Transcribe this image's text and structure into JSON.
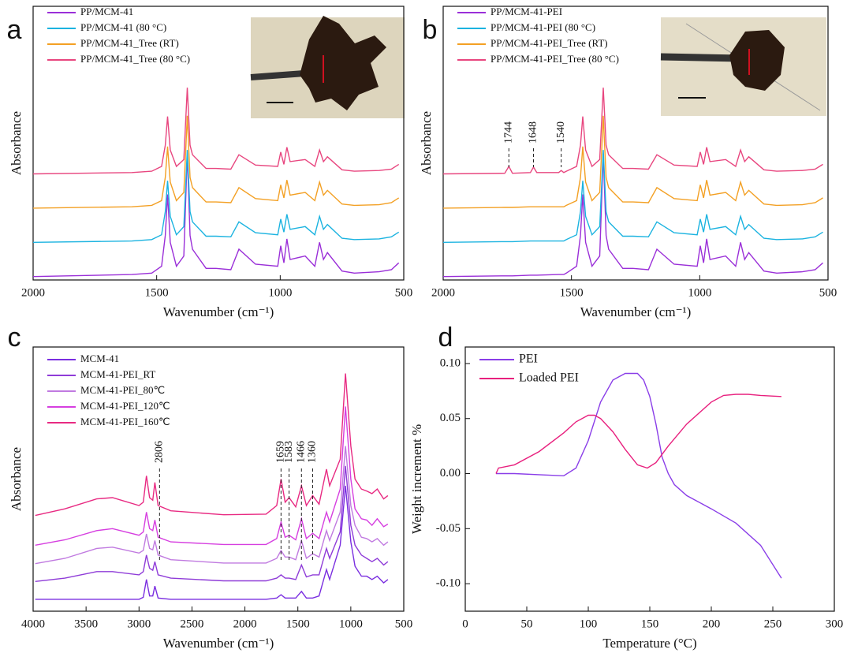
{
  "chart_data": [
    {
      "type": "line",
      "label": "a",
      "xlabel": "Wavenumber (cm⁻¹)",
      "ylabel": "Absorbance",
      "xlim": [
        2000,
        500
      ],
      "xticks": [
        2000,
        1500,
        1000,
        500
      ],
      "ylim": [
        0,
        4
      ],
      "legend": "upper left",
      "x": [
        2000,
        1600,
        1520,
        1480,
        1465,
        1456,
        1445,
        1420,
        1390,
        1376,
        1365,
        1355,
        1300,
        1260,
        1200,
        1167,
        1100,
        1010,
        998,
        985,
        973,
        960,
        899,
        860,
        841,
        825,
        809,
        750,
        700,
        600,
        550,
        520
      ],
      "series": [
        {
          "name": "PP/MCM-41",
          "color": "#9a2fd8",
          "values": [
            0.05,
            0.08,
            0.1,
            0.2,
            0.65,
            1.25,
            0.55,
            0.2,
            0.35,
            1.85,
            0.65,
            0.45,
            0.17,
            0.17,
            0.15,
            0.45,
            0.23,
            0.2,
            0.5,
            0.25,
            0.6,
            0.3,
            0.35,
            0.2,
            0.55,
            0.3,
            0.4,
            0.13,
            0.1,
            0.12,
            0.15,
            0.25
          ]
        },
        {
          "name": "PP/MCM-41 (80 °C)",
          "color": "#1bb3e0",
          "values": [
            0.55,
            0.57,
            0.59,
            0.66,
            1.0,
            1.45,
            0.93,
            0.66,
            0.78,
            1.9,
            1.0,
            0.85,
            0.64,
            0.64,
            0.63,
            0.85,
            0.69,
            0.66,
            0.89,
            0.7,
            0.96,
            0.74,
            0.78,
            0.66,
            0.93,
            0.74,
            0.81,
            0.61,
            0.59,
            0.6,
            0.63,
            0.7
          ]
        },
        {
          "name": "PP/MCM-41_Tree (RT)",
          "color": "#f3a024",
          "values": [
            1.05,
            1.07,
            1.09,
            1.16,
            1.5,
            1.95,
            1.43,
            1.16,
            1.28,
            2.4,
            1.5,
            1.35,
            1.14,
            1.14,
            1.13,
            1.35,
            1.19,
            1.16,
            1.39,
            1.2,
            1.46,
            1.24,
            1.28,
            1.16,
            1.43,
            1.24,
            1.31,
            1.11,
            1.09,
            1.1,
            1.13,
            1.2
          ]
        },
        {
          "name": "PP/MCM-41_Tree (80 °C)",
          "color": "#e8467f",
          "values": [
            1.55,
            1.57,
            1.59,
            1.66,
            1.97,
            2.39,
            1.9,
            1.66,
            1.76,
            2.81,
            1.97,
            1.83,
            1.63,
            1.63,
            1.62,
            1.83,
            1.68,
            1.66,
            1.87,
            1.69,
            1.94,
            1.73,
            1.76,
            1.66,
            1.9,
            1.73,
            1.8,
            1.61,
            1.59,
            1.6,
            1.62,
            1.69
          ]
        }
      ]
    },
    {
      "type": "line",
      "label": "b",
      "xlabel": "Wavenumber (cm⁻¹)",
      "ylabel": "Absorbance",
      "xlim": [
        2000,
        500
      ],
      "xticks": [
        2000,
        1500,
        1000,
        500
      ],
      "ylim": [
        0,
        4
      ],
      "legend": "upper left",
      "annotations": [
        1744,
        1648,
        1540
      ],
      "x": [
        2000,
        1760,
        1744,
        1730,
        1660,
        1648,
        1635,
        1550,
        1540,
        1530,
        1520,
        1480,
        1465,
        1456,
        1445,
        1420,
        1390,
        1376,
        1365,
        1355,
        1300,
        1260,
        1200,
        1167,
        1100,
        1010,
        998,
        985,
        973,
        960,
        899,
        860,
        841,
        825,
        809,
        750,
        700,
        600,
        550,
        520
      ],
      "series": [
        {
          "name": "PP/MCM-41-PEI",
          "color": "#9a2fd8",
          "values": [
            0.05,
            0.06,
            0.06,
            0.06,
            0.07,
            0.07,
            0.07,
            0.08,
            0.08,
            0.08,
            0.1,
            0.2,
            0.65,
            1.25,
            0.55,
            0.2,
            0.35,
            1.85,
            0.65,
            0.45,
            0.17,
            0.17,
            0.15,
            0.45,
            0.23,
            0.2,
            0.5,
            0.25,
            0.6,
            0.3,
            0.35,
            0.2,
            0.55,
            0.3,
            0.4,
            0.13,
            0.1,
            0.12,
            0.15,
            0.25
          ]
        },
        {
          "name": "PP/MCM-41-PEI (80 °C)",
          "color": "#1bb3e0",
          "values": [
            0.55,
            0.56,
            0.56,
            0.56,
            0.57,
            0.57,
            0.57,
            0.57,
            0.57,
            0.57,
            0.59,
            0.66,
            1.0,
            1.45,
            0.93,
            0.66,
            0.78,
            1.9,
            1.0,
            0.85,
            0.64,
            0.64,
            0.63,
            0.85,
            0.69,
            0.66,
            0.89,
            0.7,
            0.96,
            0.74,
            0.78,
            0.66,
            0.93,
            0.74,
            0.81,
            0.61,
            0.59,
            0.6,
            0.63,
            0.7
          ]
        },
        {
          "name": "PP/MCM-41-PEI_Tree (RT)",
          "color": "#f3a024",
          "values": [
            1.05,
            1.06,
            1.06,
            1.06,
            1.07,
            1.07,
            1.07,
            1.07,
            1.07,
            1.07,
            1.09,
            1.16,
            1.5,
            1.95,
            1.43,
            1.16,
            1.28,
            2.4,
            1.5,
            1.35,
            1.14,
            1.14,
            1.13,
            1.35,
            1.19,
            1.16,
            1.39,
            1.2,
            1.46,
            1.24,
            1.28,
            1.16,
            1.43,
            1.24,
            1.31,
            1.11,
            1.09,
            1.1,
            1.13,
            1.2
          ]
        },
        {
          "name": "PP/MCM-41-PEI_Tree (80 °C)",
          "color": "#e8467f",
          "values": [
            1.55,
            1.56,
            1.66,
            1.56,
            1.57,
            1.65,
            1.57,
            1.57,
            1.6,
            1.57,
            1.59,
            1.66,
            1.97,
            2.39,
            1.9,
            1.66,
            1.76,
            2.81,
            1.97,
            1.83,
            1.63,
            1.63,
            1.62,
            1.83,
            1.68,
            1.66,
            1.87,
            1.69,
            1.94,
            1.73,
            1.76,
            1.66,
            1.9,
            1.73,
            1.8,
            1.61,
            1.59,
            1.6,
            1.62,
            1.69
          ]
        }
      ]
    },
    {
      "type": "line",
      "label": "c",
      "xlabel": "Wavenumber (cm⁻¹)",
      "ylabel": "Absorbance",
      "xlim": [
        4000,
        500
      ],
      "xticks": [
        4000,
        3500,
        3000,
        2500,
        2000,
        1500,
        1000,
        500
      ],
      "ylim": [
        0,
        4
      ],
      "legend": "upper left",
      "annotations": [
        2806,
        1659,
        1583,
        1466,
        1360
      ],
      "x": [
        3980,
        3700,
        3400,
        3250,
        3000,
        2960,
        2930,
        2900,
        2870,
        2850,
        2820,
        2700,
        2200,
        1800,
        1700,
        1659,
        1620,
        1583,
        1520,
        1466,
        1420,
        1360,
        1300,
        1230,
        1200,
        1100,
        1050,
        1000,
        960,
        900,
        850,
        800,
        750,
        690,
        650
      ],
      "series": [
        {
          "name": "MCM-41",
          "color": "#7a2ee0",
          "values": [
            0.18,
            0.18,
            0.18,
            0.18,
            0.18,
            0.21,
            0.48,
            0.23,
            0.23,
            0.38,
            0.2,
            0.18,
            0.18,
            0.18,
            0.2,
            0.25,
            0.2,
            0.2,
            0.2,
            0.3,
            0.2,
            0.2,
            0.23,
            0.63,
            0.48,
            1.0,
            1.9,
            1.05,
            0.68,
            0.53,
            0.53,
            0.48,
            0.53,
            0.43,
            0.48
          ]
        },
        {
          "name": "MCM-41-PEI_RT",
          "color": "#8f3cd8",
          "values": [
            0.45,
            0.5,
            0.6,
            0.6,
            0.55,
            0.6,
            0.85,
            0.65,
            0.62,
            0.75,
            0.55,
            0.5,
            0.46,
            0.46,
            0.5,
            0.55,
            0.5,
            0.5,
            0.48,
            0.7,
            0.52,
            0.55,
            0.55,
            0.95,
            0.8,
            1.2,
            2.2,
            1.3,
            1.0,
            0.85,
            0.8,
            0.75,
            0.8,
            0.7,
            0.75
          ]
        },
        {
          "name": "MCM-41-PEI_80℃",
          "color": "#c07ae0",
          "values": [
            0.72,
            0.8,
            0.95,
            0.97,
            0.88,
            0.92,
            1.17,
            0.95,
            0.93,
            1.07,
            0.85,
            0.78,
            0.73,
            0.73,
            0.8,
            0.92,
            0.82,
            0.82,
            0.78,
            1.07,
            0.8,
            0.87,
            0.82,
            1.22,
            1.07,
            1.5,
            2.5,
            1.6,
            1.3,
            1.12,
            1.1,
            1.05,
            1.1,
            1.0,
            1.05
          ]
        },
        {
          "name": "MCM-41-PEI_120℃",
          "color": "#d63fe0",
          "values": [
            1.0,
            1.08,
            1.22,
            1.25,
            1.15,
            1.2,
            1.5,
            1.25,
            1.22,
            1.38,
            1.12,
            1.05,
            1.01,
            1.01,
            1.1,
            1.35,
            1.12,
            1.15,
            1.08,
            1.4,
            1.1,
            1.18,
            1.1,
            1.5,
            1.35,
            1.85,
            3.1,
            2.0,
            1.55,
            1.4,
            1.38,
            1.3,
            1.4,
            1.28,
            1.32
          ]
        },
        {
          "name": "MCM-41-PEI_160℃",
          "color": "#e82a82",
          "values": [
            1.45,
            1.55,
            1.7,
            1.72,
            1.6,
            1.65,
            2.05,
            1.72,
            1.68,
            1.95,
            1.6,
            1.52,
            1.46,
            1.47,
            1.6,
            2.0,
            1.65,
            1.72,
            1.58,
            1.9,
            1.6,
            1.75,
            1.62,
            2.15,
            1.9,
            2.3,
            3.6,
            2.5,
            2.0,
            1.85,
            1.82,
            1.78,
            1.85,
            1.7,
            1.75
          ]
        }
      ]
    },
    {
      "type": "line",
      "label": "d",
      "xlabel": "Temperature (°C)",
      "ylabel": "Weight increment %",
      "xlim": [
        0,
        300
      ],
      "xticks": [
        0,
        50,
        100,
        150,
        200,
        250,
        300
      ],
      "ylim": [
        -0.125,
        0.115
      ],
      "yticks": [
        {
          "value": 0.1,
          "label": "0.10"
        },
        0.05,
        {
          "value": 0,
          "label": "0.00"
        },
        -0.05,
        {
          "value": -0.1,
          "label": "-0.10"
        }
      ],
      "legend": "upper left",
      "series": [
        {
          "name": "PEI",
          "color": "#8a3ee8",
          "x": [
            25,
            40,
            60,
            80,
            90,
            100,
            110,
            120,
            130,
            140,
            145,
            150,
            155,
            160,
            165,
            170,
            180,
            200,
            220,
            240,
            257
          ],
          "values": [
            0.0,
            0.0,
            -0.001,
            -0.002,
            0.005,
            0.03,
            0.065,
            0.085,
            0.091,
            0.091,
            0.085,
            0.07,
            0.045,
            0.015,
            0.0,
            -0.01,
            -0.02,
            -0.032,
            -0.045,
            -0.065,
            -0.095
          ]
        },
        {
          "name": "Loaded PEI",
          "color": "#e8207e",
          "x": [
            25,
            27,
            40,
            60,
            80,
            90,
            100,
            105,
            110,
            120,
            130,
            140,
            148,
            155,
            165,
            180,
            200,
            210,
            220,
            230,
            240,
            257
          ],
          "values": [
            0.0,
            0.005,
            0.008,
            0.02,
            0.037,
            0.047,
            0.053,
            0.053,
            0.05,
            0.038,
            0.022,
            0.008,
            0.005,
            0.01,
            0.025,
            0.045,
            0.065,
            0.071,
            0.072,
            0.072,
            0.071,
            0.07
          ]
        }
      ]
    }
  ]
}
